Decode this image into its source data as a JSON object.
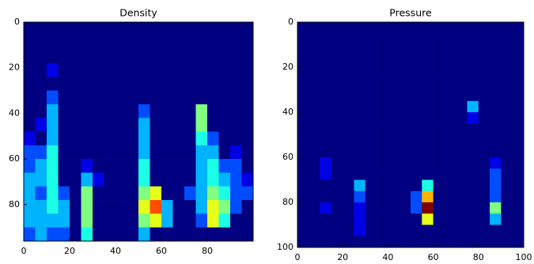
{
  "chart_data": [
    {
      "type": "heatmap",
      "title": "Density",
      "colormap": "jet",
      "clim": [
        0,
        10
      ],
      "xlim": [
        0,
        100
      ],
      "ylim": [
        0,
        96
      ],
      "xticks": [
        0,
        20,
        40,
        60,
        80
      ],
      "yticks": [
        0,
        20,
        40,
        60,
        80
      ],
      "xbins": [
        0,
        5,
        10,
        15,
        20,
        25,
        30,
        35,
        40,
        45,
        50,
        55,
        60,
        65,
        70,
        75,
        80,
        85,
        90,
        95,
        100
      ],
      "ybins": [
        0,
        6,
        12,
        18,
        24,
        30,
        36,
        42,
        48,
        54,
        60,
        66,
        72,
        78,
        84,
        90,
        96
      ],
      "values": [
        [
          0,
          0,
          0,
          0,
          0,
          0,
          0,
          0,
          0,
          0,
          0,
          0,
          0,
          0,
          0,
          0,
          0,
          0,
          0,
          0
        ],
        [
          0,
          0,
          0,
          0,
          0,
          0,
          0,
          0,
          0,
          0,
          0,
          0,
          0,
          0,
          0,
          0,
          0,
          0,
          0,
          0
        ],
        [
          0,
          0,
          0,
          0,
          0,
          0,
          0,
          0,
          0,
          0,
          0,
          0,
          0,
          0,
          0,
          0,
          0,
          0,
          0,
          0
        ],
        [
          0,
          0,
          1,
          0,
          0,
          0,
          0,
          0,
          0,
          0,
          0,
          0,
          0,
          0,
          0,
          0,
          0,
          0,
          0,
          0
        ],
        [
          0,
          0,
          0,
          0,
          0,
          0,
          0,
          0,
          0,
          0,
          0,
          0,
          0,
          0,
          0,
          0,
          0,
          0,
          0,
          0
        ],
        [
          0,
          0,
          2,
          0,
          0,
          0,
          0,
          0,
          0,
          0,
          0,
          0,
          0,
          0,
          0,
          0,
          0,
          0,
          0,
          0
        ],
        [
          0,
          0,
          3,
          0,
          0,
          0,
          0,
          0,
          0,
          0,
          2,
          0,
          0,
          0,
          0,
          5,
          0,
          0,
          0,
          0
        ],
        [
          0,
          1,
          3,
          0,
          0,
          0,
          0,
          0,
          0,
          0,
          3,
          0,
          0,
          0,
          0,
          5,
          0,
          0,
          0,
          0
        ],
        [
          1,
          0,
          3,
          0,
          0,
          0,
          0,
          0,
          0,
          0,
          3,
          0,
          0,
          0,
          0,
          4,
          2,
          0,
          0,
          0
        ],
        [
          2,
          2,
          4,
          0,
          0,
          0,
          0,
          0,
          0,
          0,
          3,
          0,
          0,
          0,
          0,
          3,
          3,
          0,
          1,
          0
        ],
        [
          2,
          3,
          4,
          0,
          0,
          1,
          0,
          0,
          0,
          0,
          4,
          0,
          0,
          0,
          0,
          3,
          4,
          2,
          2,
          0
        ],
        [
          3,
          3,
          4,
          0,
          0,
          3,
          1,
          0,
          0,
          0,
          4,
          0,
          0,
          0,
          0,
          3,
          4,
          3,
          2,
          1
        ],
        [
          3,
          2,
          4,
          2,
          0,
          5,
          0,
          0,
          0,
          0,
          5,
          6,
          0,
          0,
          2,
          3,
          5,
          4,
          2,
          2
        ],
        [
          3,
          3,
          4,
          3,
          0,
          5,
          0,
          0,
          0,
          0,
          6,
          8,
          3,
          0,
          0,
          3,
          6,
          5,
          2,
          0
        ],
        [
          3,
          3,
          3,
          3,
          0,
          5,
          0,
          0,
          0,
          0,
          5,
          6,
          3,
          0,
          0,
          2,
          6,
          4,
          0,
          0
        ],
        [
          2,
          3,
          2,
          2,
          0,
          4,
          0,
          0,
          0,
          0,
          3,
          0,
          0,
          0,
          0,
          0,
          0,
          0,
          0,
          0
        ]
      ]
    },
    {
      "type": "heatmap",
      "title": "Pressure",
      "colormap": "jet",
      "clim": [
        0,
        10
      ],
      "xlim": [
        0,
        100
      ],
      "ylim": [
        0,
        100
      ],
      "xticks": [
        0,
        20,
        40,
        60,
        80,
        100
      ],
      "yticks": [
        0,
        20,
        40,
        60,
        80,
        100
      ],
      "xbins": [
        0,
        5,
        10,
        15,
        20,
        25,
        30,
        35,
        40,
        45,
        50,
        55,
        60,
        65,
        70,
        75,
        80,
        85,
        90,
        95,
        100
      ],
      "ybins": [
        0,
        5,
        10,
        15,
        20,
        25,
        30,
        35,
        40,
        45,
        50,
        55,
        60,
        65,
        70,
        75,
        80,
        85,
        90,
        95,
        100
      ],
      "values": [
        [
          0,
          0,
          0,
          0,
          0,
          0,
          0,
          0,
          0,
          0,
          0,
          0,
          0,
          0,
          0,
          0,
          0,
          0,
          0,
          0
        ],
        [
          0,
          0,
          0,
          0,
          0,
          0,
          0,
          0,
          0,
          0,
          0,
          0,
          0,
          0,
          0,
          0,
          0,
          0,
          0,
          0
        ],
        [
          0,
          0,
          0,
          0,
          0,
          0,
          0,
          0,
          0,
          0,
          0,
          0,
          0,
          0,
          0,
          0,
          0,
          0,
          0,
          0
        ],
        [
          0,
          0,
          0,
          0,
          0,
          0,
          0,
          0,
          0,
          0,
          0,
          0,
          0,
          0,
          0,
          0,
          0,
          0,
          0,
          0
        ],
        [
          0,
          0,
          0,
          0,
          0,
          0,
          0,
          0,
          0,
          0,
          0,
          0,
          0,
          0,
          0,
          0,
          0,
          0,
          0,
          0
        ],
        [
          0,
          0,
          0,
          0,
          0,
          0,
          0,
          0,
          0,
          0,
          0,
          0,
          0,
          0,
          0,
          0,
          0,
          0,
          0,
          0
        ],
        [
          0,
          0,
          0,
          0,
          0,
          0,
          0,
          0,
          0,
          0,
          0,
          0,
          0,
          0,
          0,
          0,
          0,
          0,
          0,
          0
        ],
        [
          0,
          0,
          0,
          0,
          0,
          0,
          0,
          0,
          0,
          0,
          0,
          0,
          0,
          0,
          0,
          3,
          0,
          0,
          0,
          0
        ],
        [
          0,
          0,
          0,
          0,
          0,
          0,
          0,
          0,
          0,
          0,
          0,
          0,
          0,
          0,
          0,
          1,
          0,
          0,
          0,
          0
        ],
        [
          0,
          0,
          0,
          0,
          0,
          0,
          0,
          0,
          0,
          0,
          0,
          0,
          0,
          0,
          0,
          0,
          0,
          0,
          0,
          0
        ],
        [
          0,
          0,
          0,
          0,
          0,
          0,
          0,
          0,
          0,
          0,
          0,
          0,
          0,
          0,
          0,
          0,
          0,
          0,
          0,
          0
        ],
        [
          0,
          0,
          0,
          0,
          0,
          0,
          0,
          0,
          0,
          0,
          0,
          0,
          0,
          0,
          0,
          0,
          0,
          0,
          0,
          0
        ],
        [
          0,
          0,
          1,
          0,
          0,
          0,
          0,
          0,
          0,
          0,
          0,
          0,
          0,
          0,
          0,
          0,
          0,
          1,
          0,
          0
        ],
        [
          0,
          0,
          1,
          0,
          0,
          0,
          0,
          0,
          0,
          0,
          0,
          0,
          0,
          0,
          0,
          0,
          0,
          2,
          0,
          0
        ],
        [
          0,
          0,
          0,
          0,
          0,
          3,
          0,
          0,
          0,
          0,
          0,
          4,
          0,
          0,
          0,
          0,
          0,
          2,
          0,
          0
        ],
        [
          0,
          0,
          0,
          0,
          0,
          2,
          0,
          0,
          0,
          0,
          2,
          7,
          0,
          0,
          0,
          0,
          0,
          2,
          0,
          0
        ],
        [
          0,
          0,
          1,
          0,
          0,
          1,
          0,
          0,
          0,
          0,
          2,
          10,
          0,
          0,
          0,
          0,
          0,
          5,
          0,
          0
        ],
        [
          0,
          0,
          0,
          0,
          0,
          1,
          0,
          0,
          0,
          0,
          0,
          6,
          0,
          0,
          0,
          0,
          0,
          3,
          0,
          0
        ],
        [
          0,
          0,
          0,
          0,
          0,
          1,
          0,
          0,
          0,
          0,
          0,
          0,
          0,
          0,
          0,
          0,
          0,
          0,
          0,
          0
        ],
        [
          0,
          0,
          0,
          0,
          0,
          0,
          0,
          0,
          0,
          0,
          0,
          0,
          0,
          0,
          0,
          0,
          0,
          0,
          0,
          0
        ]
      ]
    }
  ]
}
